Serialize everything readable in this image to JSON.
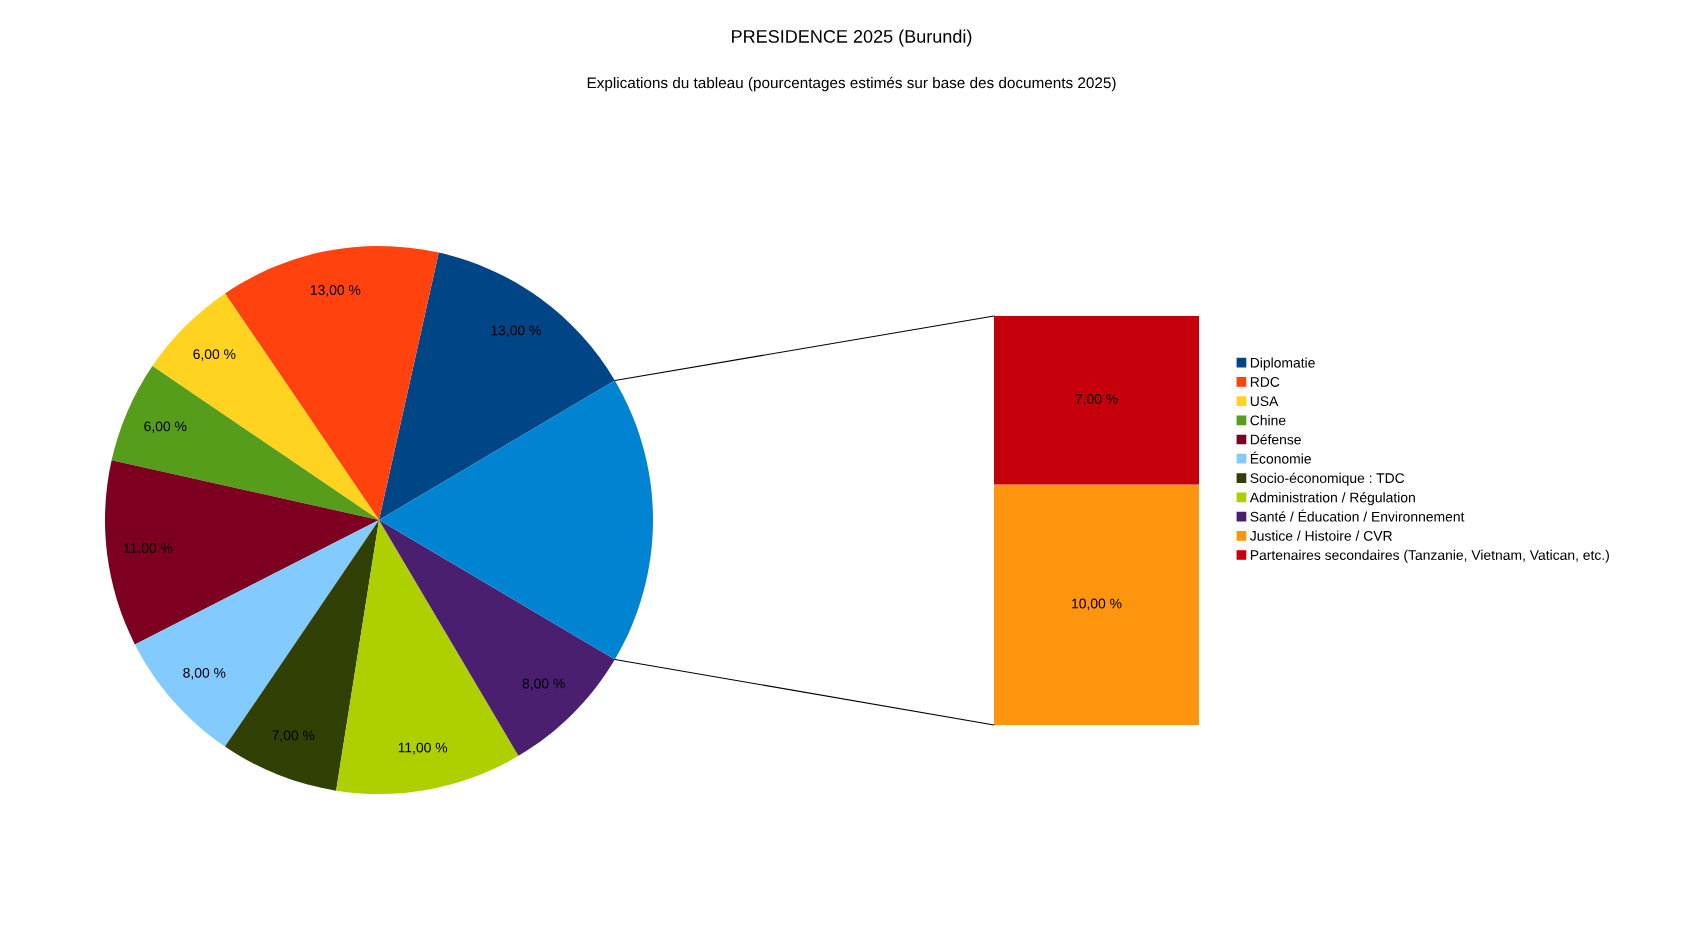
{
  "chart_data": [
    {
      "type": "pie",
      "title": "PRESIDENCE 2025 (Burundi)",
      "subtitle": "Explications du tableau (pourcentages estimés sur base des documents 2025)",
      "categories": [
        "Diplomatie",
        "RDC",
        "USA",
        "Chine",
        "Défense",
        "Économie",
        "Socio-économique : TDC",
        "Administration / Régulation",
        "Santé / Éducation / Environnement",
        null
      ],
      "values": [
        13,
        13,
        6,
        6,
        11,
        8,
        7,
        11,
        8,
        17
      ],
      "colors": [
        "#004586",
        "#ff420e",
        "#ffd320",
        "#579d1c",
        "#7e0021",
        "#83caff",
        "#314004",
        "#aecf00",
        "#4b1f6f",
        "#0084d1"
      ],
      "value_labels": [
        "13,00 %",
        "13,00 %",
        "6,00 %",
        "6,00 %",
        "11,00 %",
        "8,00 %",
        "7,00 %",
        "11,00 %",
        "8,00 %",
        null
      ],
      "legend": "right"
    },
    {
      "type": "bar",
      "stacked": true,
      "categories": [
        null
      ],
      "series": [
        {
          "name": "Justice / Histoire / CVR",
          "color": "#ff950e",
          "values": [
            10
          ],
          "value_labels": [
            "10,00 %"
          ]
        },
        {
          "name": "Partenaires secondaires (Tanzanie, Vietnam, Vatican, etc.)",
          "color": "#c5000b",
          "values": [
            7
          ],
          "value_labels": [
            "7,00 %"
          ]
        }
      ],
      "legend": "right"
    }
  ]
}
